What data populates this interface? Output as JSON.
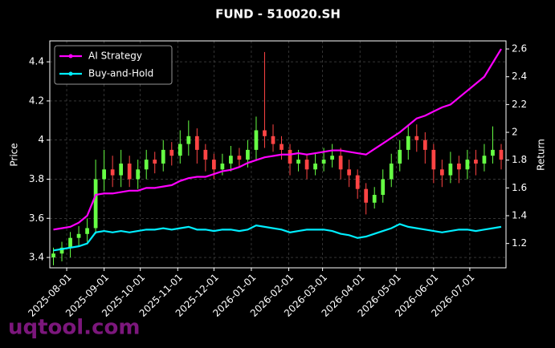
{
  "chart_data": {
    "type": "candlestick",
    "title": "FUND - 510020.SH",
    "x": [
      "2025-07-21",
      "2025-07-28",
      "2025-08-04",
      "2025-08-11",
      "2025-08-18",
      "2025-08-25",
      "2025-09-01",
      "2025-09-08",
      "2025-09-15",
      "2025-09-22",
      "2025-09-29",
      "2025-10-06",
      "2025-10-13",
      "2025-10-20",
      "2025-10-27",
      "2025-11-03",
      "2025-11-10",
      "2025-11-17",
      "2025-11-24",
      "2025-12-01",
      "2025-12-08",
      "2025-12-15",
      "2025-12-22",
      "2025-12-29",
      "2026-01-05",
      "2026-01-12",
      "2026-01-19",
      "2026-01-26",
      "2026-02-02",
      "2026-02-09",
      "2026-02-16",
      "2026-02-23",
      "2026-03-02",
      "2026-03-09",
      "2026-03-16",
      "2026-03-23",
      "2026-03-30",
      "2026-04-06",
      "2026-04-13",
      "2026-04-20",
      "2026-04-27",
      "2026-05-04",
      "2026-05-11",
      "2026-05-18",
      "2026-05-25",
      "2026-06-01",
      "2026-06-08",
      "2026-06-15",
      "2026-06-22",
      "2026-06-29",
      "2026-07-06",
      "2026-07-13",
      "2026-07-20",
      "2026-07-27"
    ],
    "open": [
      3.4,
      3.42,
      3.45,
      3.5,
      3.52,
      3.55,
      3.8,
      3.85,
      3.82,
      3.88,
      3.8,
      3.85,
      3.9,
      3.88,
      3.95,
      3.92,
      3.98,
      4.02,
      3.95,
      3.9,
      3.85,
      3.88,
      3.92,
      3.9,
      3.95,
      4.05,
      4.02,
      3.98,
      3.95,
      3.88,
      3.9,
      3.85,
      3.88,
      3.9,
      3.92,
      3.85,
      3.82,
      3.75,
      3.68,
      3.72,
      3.8,
      3.88,
      3.95,
      4.02,
      4.0,
      3.95,
      3.85,
      3.82,
      3.88,
      3.85,
      3.9,
      3.88,
      3.92,
      3.95
    ],
    "high": [
      3.45,
      3.48,
      3.53,
      3.56,
      3.6,
      3.9,
      3.95,
      3.92,
      3.95,
      3.92,
      3.9,
      3.95,
      3.94,
      4.0,
      3.99,
      4.05,
      4.1,
      4.06,
      3.98,
      3.93,
      3.93,
      3.97,
      3.96,
      4.0,
      4.12,
      4.45,
      4.08,
      4.02,
      3.98,
      3.95,
      3.93,
      3.93,
      3.96,
      3.98,
      3.96,
      3.9,
      3.85,
      3.78,
      3.76,
      3.85,
      3.93,
      4.0,
      4.08,
      4.08,
      4.04,
      3.98,
      3.9,
      3.94,
      3.92,
      3.95,
      3.95,
      3.98,
      4.07,
      3.98
    ],
    "low": [
      3.36,
      3.38,
      3.4,
      3.46,
      3.48,
      3.52,
      3.74,
      3.76,
      3.76,
      3.76,
      3.75,
      3.8,
      3.83,
      3.84,
      3.87,
      3.88,
      3.92,
      3.88,
      3.84,
      3.8,
      3.82,
      3.84,
      3.86,
      3.86,
      3.9,
      3.96,
      3.94,
      3.9,
      3.82,
      3.84,
      3.8,
      3.82,
      3.84,
      3.86,
      3.8,
      3.76,
      3.7,
      3.62,
      3.65,
      3.68,
      3.76,
      3.84,
      3.9,
      3.94,
      3.88,
      3.78,
      3.76,
      3.78,
      3.78,
      3.8,
      3.82,
      3.84,
      3.88,
      3.85
    ],
    "close": [
      3.42,
      3.45,
      3.5,
      3.52,
      3.55,
      3.8,
      3.85,
      3.82,
      3.88,
      3.8,
      3.85,
      3.9,
      3.88,
      3.95,
      3.92,
      3.98,
      4.02,
      3.95,
      3.9,
      3.85,
      3.88,
      3.92,
      3.9,
      3.95,
      4.05,
      4.02,
      3.98,
      3.95,
      3.88,
      3.9,
      3.85,
      3.88,
      3.9,
      3.92,
      3.85,
      3.82,
      3.75,
      3.68,
      3.72,
      3.8,
      3.88,
      3.95,
      4.02,
      4.0,
      3.95,
      3.85,
      3.82,
      3.88,
      3.85,
      3.9,
      3.88,
      3.92,
      3.95,
      3.9
    ],
    "up_color": "#66ff44",
    "down_color": "#ff4444",
    "series": [
      {
        "name": "AI Strategy",
        "color": "#ff00ff",
        "axis": "y2",
        "values": [
          1.3,
          1.31,
          1.32,
          1.35,
          1.4,
          1.55,
          1.56,
          1.56,
          1.57,
          1.58,
          1.58,
          1.6,
          1.6,
          1.61,
          1.62,
          1.65,
          1.67,
          1.68,
          1.68,
          1.7,
          1.72,
          1.73,
          1.75,
          1.78,
          1.8,
          1.82,
          1.83,
          1.84,
          1.84,
          1.85,
          1.84,
          1.85,
          1.86,
          1.87,
          1.87,
          1.86,
          1.85,
          1.84,
          1.88,
          1.92,
          1.96,
          2.0,
          2.05,
          2.1,
          2.12,
          2.15,
          2.18,
          2.2,
          2.25,
          2.3,
          2.35,
          2.4,
          2.5,
          2.6
        ]
      },
      {
        "name": "Buy-and-Hold",
        "color": "#00eeff",
        "axis": "y2",
        "values": [
          1.15,
          1.16,
          1.17,
          1.18,
          1.2,
          1.28,
          1.29,
          1.28,
          1.29,
          1.28,
          1.29,
          1.3,
          1.3,
          1.31,
          1.3,
          1.31,
          1.32,
          1.3,
          1.3,
          1.29,
          1.3,
          1.3,
          1.29,
          1.3,
          1.33,
          1.32,
          1.31,
          1.3,
          1.28,
          1.29,
          1.3,
          1.3,
          1.3,
          1.29,
          1.27,
          1.26,
          1.24,
          1.25,
          1.27,
          1.29,
          1.31,
          1.34,
          1.32,
          1.31,
          1.3,
          1.29,
          1.28,
          1.29,
          1.3,
          1.3,
          1.29,
          1.3,
          1.31,
          1.32
        ]
      }
    ],
    "xlim": [
      "2025-07-18",
      "2026-07-31"
    ],
    "xticks": [
      "2025-08-01",
      "2025-09-01",
      "2025-10-01",
      "2025-11-01",
      "2025-12-01",
      "2026-01-01",
      "2026-02-01",
      "2026-03-01",
      "2026-04-01",
      "2026-05-01",
      "2026-06-01",
      "2026-07-01"
    ],
    "ylim": [
      3.347,
      4.507
    ],
    "yticks": [
      3.4,
      3.6,
      3.8,
      4.0,
      4.2,
      4.4
    ],
    "y2lim": [
      1.025,
      2.658
    ],
    "y2ticks": [
      1.2,
      1.4,
      1.6,
      1.8,
      2.0,
      2.2,
      2.4,
      2.6
    ],
    "ylabel": "Price",
    "y2label": "Return",
    "legend": "upper left",
    "grid": true,
    "watermark": "uqtool.com"
  }
}
